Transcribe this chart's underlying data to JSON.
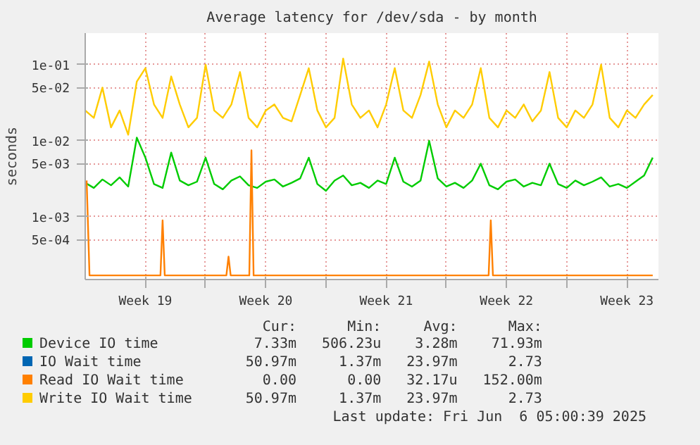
{
  "chart_data": {
    "type": "line",
    "title": "Average latency for /dev/sda - by month",
    "ylabel": "seconds",
    "log": "y",
    "grid": true,
    "legend": "bottom",
    "marker": "none",
    "line_style": "solid",
    "xlim": [
      "2025-05-05T00:00",
      "2025-06-07T08:00"
    ],
    "xticks": [
      {
        "value": "2025-05-08T12:00",
        "label": "Week 19"
      },
      {
        "value": "2025-05-12",
        "label": null
      },
      {
        "value": "2025-05-15T12:00",
        "label": "Week 20"
      },
      {
        "value": "2025-05-19",
        "label": null
      },
      {
        "value": "2025-05-22T12:00",
        "label": "Week 21"
      },
      {
        "value": "2025-05-26",
        "label": null
      },
      {
        "value": "2025-05-29T12:00",
        "label": "Week 22"
      },
      {
        "value": "2025-06-02",
        "label": null
      },
      {
        "value": "2025-06-05T12:00",
        "label": "Week 23"
      }
    ],
    "ylim": [
      0.00015,
      0.26
    ],
    "yticks": [
      {
        "value": 0.0005,
        "label": "5e-04"
      },
      {
        "value": 0.001,
        "label": "1e-03"
      },
      {
        "value": 0.005,
        "label": "5e-03"
      },
      {
        "value": 0.01,
        "label": "1e-02"
      },
      {
        "value": 0.05,
        "label": "5e-02"
      },
      {
        "value": 0.1,
        "label": "1e-01"
      }
    ],
    "x": [
      "2025-05-05T00:00",
      "2025-05-05T12:00",
      "2025-05-06T00:00",
      "2025-05-06T12:00",
      "2025-05-07T00:00",
      "2025-05-07T12:00",
      "2025-05-08T00:00",
      "2025-05-08T12:00",
      "2025-05-09T00:00",
      "2025-05-09T12:00",
      "2025-05-10T00:00",
      "2025-05-10T12:00",
      "2025-05-11T00:00",
      "2025-05-11T12:00",
      "2025-05-12T00:00",
      "2025-05-12T12:00",
      "2025-05-13T00:00",
      "2025-05-13T12:00",
      "2025-05-14T00:00",
      "2025-05-14T12:00",
      "2025-05-15T00:00",
      "2025-05-15T12:00",
      "2025-05-16T00:00",
      "2025-05-16T12:00",
      "2025-05-17T00:00",
      "2025-05-17T12:00",
      "2025-05-18T00:00",
      "2025-05-18T12:00",
      "2025-05-19T00:00",
      "2025-05-19T12:00",
      "2025-05-20T00:00",
      "2025-05-20T12:00",
      "2025-05-21T00:00",
      "2025-05-21T12:00",
      "2025-05-22T00:00",
      "2025-05-22T12:00",
      "2025-05-23T00:00",
      "2025-05-23T12:00",
      "2025-05-24T00:00",
      "2025-05-24T12:00",
      "2025-05-25T00:00",
      "2025-05-25T12:00",
      "2025-05-26T00:00",
      "2025-05-26T12:00",
      "2025-05-27T00:00",
      "2025-05-27T12:00",
      "2025-05-28T00:00",
      "2025-05-28T12:00",
      "2025-05-29T00:00",
      "2025-05-29T12:00",
      "2025-05-30T00:00",
      "2025-05-30T12:00",
      "2025-05-31T00:00",
      "2025-05-31T12:00",
      "2025-06-01T00:00",
      "2025-06-01T12:00",
      "2025-06-02T00:00",
      "2025-06-02T12:00",
      "2025-06-03T00:00",
      "2025-06-03T12:00",
      "2025-06-04T00:00",
      "2025-06-04T12:00",
      "2025-06-05T00:00",
      "2025-06-05T12:00",
      "2025-06-06T00:00",
      "2025-06-06T12:00",
      "2025-06-07T00:00"
    ],
    "series": [
      {
        "name": "Device IO time",
        "color": "#00cc00",
        "values": [
          0.0028,
          0.0024,
          0.0031,
          0.0026,
          0.0033,
          0.0025,
          0.011,
          0.006,
          0.0027,
          0.0024,
          0.007,
          0.003,
          0.0026,
          0.0029,
          0.006,
          0.0027,
          0.0023,
          0.003,
          0.0034,
          0.0026,
          0.0024,
          0.0029,
          0.0031,
          0.0025,
          0.0028,
          0.0032,
          0.006,
          0.0027,
          0.0022,
          0.003,
          0.0035,
          0.0026,
          0.0028,
          0.0024,
          0.003,
          0.0027,
          0.006,
          0.0029,
          0.0025,
          0.003,
          0.01,
          0.0032,
          0.0025,
          0.0028,
          0.0024,
          0.003,
          0.005,
          0.0026,
          0.0023,
          0.0029,
          0.0031,
          0.0025,
          0.0028,
          0.0026,
          0.005,
          0.0027,
          0.0024,
          0.003,
          0.0026,
          0.0029,
          0.0033,
          0.0025,
          0.0027,
          0.0024,
          0.0029,
          0.0035,
          0.006
        ]
      },
      {
        "name": "IO Wait time",
        "color": "#0066b3",
        "values": [
          null,
          null,
          null,
          null,
          null,
          null,
          null,
          null,
          null,
          null,
          null,
          null,
          null,
          null,
          null,
          null,
          null,
          null,
          null,
          null,
          null,
          null,
          null,
          null,
          null,
          null,
          null,
          null,
          null,
          null,
          null,
          null,
          null,
          null,
          null,
          null,
          null,
          null,
          null,
          null,
          null,
          null,
          null,
          null,
          null,
          null,
          null,
          null,
          null,
          null,
          null,
          null,
          null,
          null,
          null,
          null,
          null,
          null,
          null,
          null,
          null,
          null,
          null,
          null,
          null,
          null,
          null
        ]
      },
      {
        "name": "Read IO Wait time",
        "color": "#ff8000",
        "x": [
          "2025-05-05T02:00",
          "2025-05-05T06:00",
          "2025-05-09T09:00",
          "2025-05-09T12:00",
          "2025-05-09T15:00",
          "2025-05-13T05:00",
          "2025-05-13T08:00",
          "2025-05-13T11:00",
          "2025-05-14T13:00",
          "2025-05-14T16:00",
          "2025-05-14T19:00",
          "2025-05-28T11:00",
          "2025-05-28T14:00",
          "2025-05-28T17:00",
          "2025-06-07T00:00"
        ],
        "values": [
          0.003,
          0.00017,
          0.00017,
          0.0009,
          0.00017,
          0.00017,
          0.0003,
          0.00017,
          0.00017,
          0.0075,
          0.00017,
          0.00017,
          0.0009,
          0.00017,
          0.00017
        ]
      },
      {
        "name": "Write IO Wait time",
        "color": "#ffcc00",
        "values": [
          0.025,
          0.02,
          0.05,
          0.015,
          0.025,
          0.012,
          0.06,
          0.09,
          0.03,
          0.02,
          0.07,
          0.03,
          0.015,
          0.02,
          0.1,
          0.025,
          0.02,
          0.03,
          0.08,
          0.02,
          0.015,
          0.025,
          0.03,
          0.02,
          0.018,
          0.04,
          0.09,
          0.025,
          0.015,
          0.02,
          0.12,
          0.03,
          0.02,
          0.025,
          0.015,
          0.03,
          0.09,
          0.025,
          0.02,
          0.04,
          0.11,
          0.03,
          0.015,
          0.025,
          0.02,
          0.03,
          0.09,
          0.02,
          0.015,
          0.025,
          0.02,
          0.03,
          0.018,
          0.025,
          0.08,
          0.02,
          0.015,
          0.025,
          0.02,
          0.03,
          0.1,
          0.02,
          0.015,
          0.025,
          0.02,
          0.03,
          0.04
        ]
      }
    ],
    "annotations": [
      "Cur:",
      "Min:",
      "Avg:",
      "Max:",
      "7.33m",
      "506.23u",
      "3.28m",
      "71.93m",
      "50.97m",
      "1.37m",
      "23.97m",
      "2.73",
      "0.00",
      "0.00",
      "32.17u",
      "152.00m",
      "50.97m",
      "1.37m",
      "23.97m",
      "2.73",
      "Last update: Fri Jun  6 05:00:39 2025"
    ]
  }
}
